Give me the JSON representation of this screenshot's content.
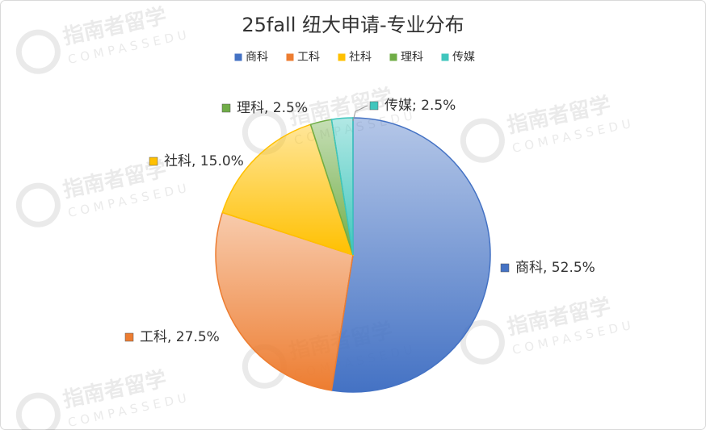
{
  "chart_data": {
    "type": "pie",
    "title": "25fall 纽大申请-专业分布",
    "categories": [
      "商科",
      "工科",
      "社科",
      "理科",
      "传媒"
    ],
    "values": [
      52.5,
      27.5,
      15.0,
      2.5,
      2.5
    ],
    "value_labels": [
      "商科, 52.5%",
      "工科, 27.5%",
      "社科, 15.0%",
      "理科, 2.5%",
      "传媒; 2.5%"
    ],
    "colors": [
      "#4472c4",
      "#ed7d31",
      "#ffc000",
      "#70ad47",
      "#3fc6bd"
    ],
    "legend": "top",
    "watermark": [
      "指南者留学",
      "COMPASSEDU"
    ]
  }
}
